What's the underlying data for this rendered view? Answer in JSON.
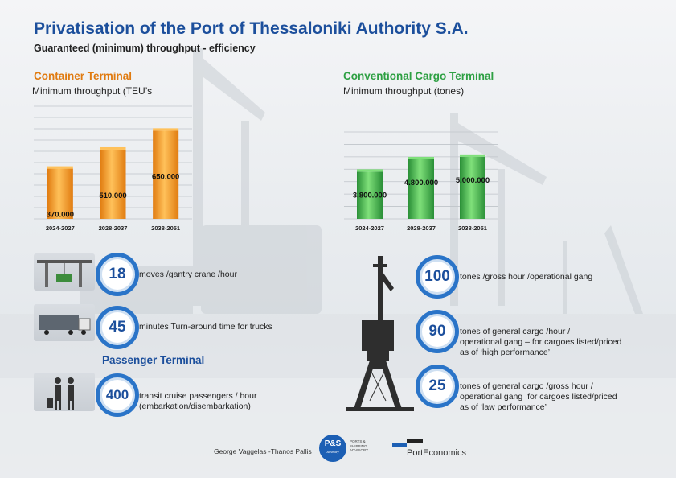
{
  "title": "Privatisation of the Port of Thessaloniki Authority S.A.",
  "subtitle": "Guaranteed (minimum) throughput - efficiency",
  "container_section": {
    "title": "Container Terminal",
    "subtitle": "Minimum throughput (TEU’s"
  },
  "cargo_section": {
    "title": "Conventional Cargo Terminal",
    "subtitle": "Minimum throughput (tones)"
  },
  "passenger_section": {
    "title": "Passenger Terminal"
  },
  "chart_data": [
    {
      "type": "bar",
      "title": "Container Terminal",
      "subtitle": "Minimum throughput (TEU’s",
      "categories": [
        "2024-2027",
        "2028-2037",
        "2038-2051"
      ],
      "values": [
        370000,
        510000,
        650000
      ],
      "value_labels": [
        "370.000",
        "510.000",
        "650.000"
      ],
      "ylim": [
        0,
        830000
      ],
      "grid": true,
      "color": "#f29a1d"
    },
    {
      "type": "bar",
      "title": "Conventional Cargo Terminal",
      "subtitle": "Minimum throughput (tones)",
      "categories": [
        "2024-2027",
        "2028-2037",
        "2038-2051"
      ],
      "values": [
        3800000,
        4800000,
        5000000
      ],
      "value_labels": [
        "3.800.000",
        "4.800.000",
        "5.000.000"
      ],
      "ylim": [
        0,
        7000000
      ],
      "grid": true,
      "color": "#3fb34f"
    }
  ],
  "kpis_left": [
    {
      "value": "18",
      "text": "moves /gantry crane /hour",
      "icon": "gantry-crane-icon"
    },
    {
      "value": "45",
      "text": "minutes Turn-around time for trucks",
      "icon": "truck-icon"
    },
    {
      "value": "400",
      "text": "transit cruise passengers / hour\n(embarkation/disembarkation)",
      "icon": "passengers-icon"
    }
  ],
  "kpis_right": [
    {
      "value": "100",
      "text": "tones /gross hour /operational gang"
    },
    {
      "value": "90",
      "text": "tones of general cargo /hour /\noperational gang – for cargoes listed/priced\nas of ‘high performance’"
    },
    {
      "value": "25",
      "text": "tones of general cargo /gross hour /\noperational gang  for cargoes listed/priced\nas of ‘law performance’"
    }
  ],
  "footer": {
    "authors": "George Vaggelas -Thanos Pallis",
    "ps_logo": "P&S",
    "ps_logo_sub": "Advisory",
    "ps_logo_text": "PORTS &\nSHIPPING\nADVISORY",
    "pe_logo": "PortEconomics"
  },
  "colors": {
    "accent_blue": "#1c4f9c",
    "orange": "#e07b10",
    "green": "#2ea043",
    "ring": "#2a74c8"
  }
}
